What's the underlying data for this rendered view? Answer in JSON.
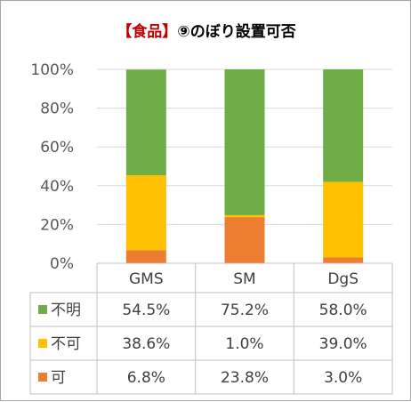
{
  "chart_data": {
    "type": "bar",
    "stacked": true,
    "orientation": "vertical",
    "title_prefix": "【食品】",
    "title_main": "⑨のぼり設置可否",
    "categories": [
      "GMS",
      "SM",
      "DgS"
    ],
    "ylim": [
      0,
      100
    ],
    "yticks": [
      "0%",
      "20%",
      "40%",
      "60%",
      "80%",
      "100%"
    ],
    "grid": true,
    "legend": "data-table",
    "series": [
      {
        "name": "可",
        "color": "#ed7d31",
        "values": [
          6.8,
          23.8,
          3.0
        ],
        "labels": [
          "6.8%",
          "23.8%",
          "3.0%"
        ]
      },
      {
        "name": "不可",
        "color": "#ffc000",
        "values": [
          38.6,
          1.0,
          39.0
        ],
        "labels": [
          "38.6%",
          "1.0%",
          "39.0%"
        ]
      },
      {
        "name": "不明",
        "color": "#70ad47",
        "values": [
          54.5,
          75.2,
          58.0
        ],
        "labels": [
          "54.5%",
          "75.2%",
          "58.0%"
        ]
      }
    ],
    "table_order": [
      "不明",
      "不可",
      "可"
    ]
  }
}
